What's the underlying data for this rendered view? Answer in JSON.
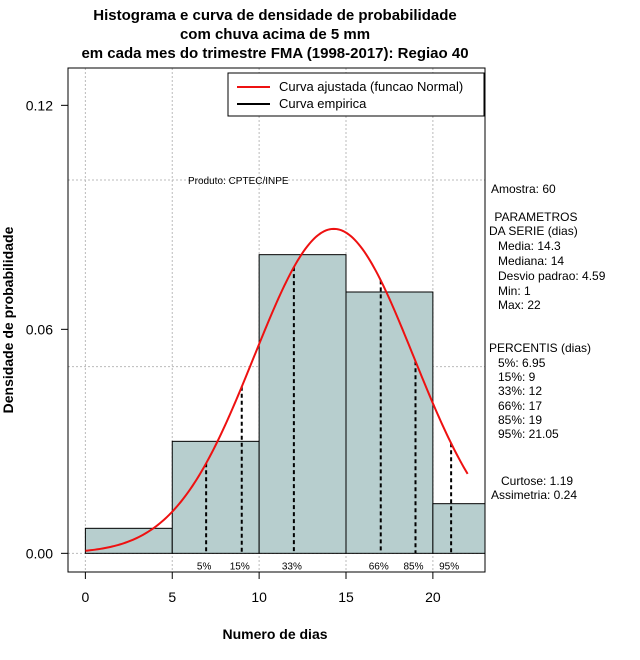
{
  "chart_data": {
    "type": "bar",
    "title_lines": [
      "Histograma e curva de densidade de probabilidade",
      "com chuva acima de 5 mm",
      "em cada mes do trimestre FMA (1998-2017): Regiao 40"
    ],
    "xlabel": "Numero de dias",
    "ylabel": "Densidade de probabilidade",
    "xlim": [
      -1,
      23
    ],
    "ylim": [
      -0.005,
      0.13
    ],
    "x_ticks": [
      0,
      5,
      10,
      15,
      20
    ],
    "y_ticks": [
      {
        "value": 0.0,
        "label": "0.00"
      },
      {
        "value": 0.06,
        "label": "0.06"
      },
      {
        "value": 0.12,
        "label": "0.12"
      }
    ],
    "grid_x": [
      0,
      5,
      10,
      15,
      20
    ],
    "grid_y": [
      0.0,
      0.05,
      0.1
    ],
    "bins": [
      {
        "x0": 0,
        "x1": 5,
        "density": 0.0067
      },
      {
        "x0": 5,
        "x1": 10,
        "density": 0.03
      },
      {
        "x0": 10,
        "x1": 15,
        "density": 0.08
      },
      {
        "x0": 15,
        "x1": 20,
        "density": 0.07
      },
      {
        "x0": 20,
        "x1": 23,
        "density": 0.0133
      }
    ],
    "normal_fit": {
      "mean": 14.3,
      "sd": 4.59,
      "x_from": 0,
      "x_to": 22
    },
    "percentile_lines": [
      {
        "x": 6.95,
        "label": "5%"
      },
      {
        "x": 9,
        "label": "15%"
      },
      {
        "x": 12,
        "label": "33%"
      },
      {
        "x": 17,
        "label": "66%"
      },
      {
        "x": 19,
        "label": "85%"
      },
      {
        "x": 21.05,
        "label": "95%"
      }
    ],
    "legend": {
      "position": "top-right",
      "entries": [
        {
          "label": "Curva ajustada (funcao Normal)",
          "color": "#ee1111"
        },
        {
          "label": "Curva empirica",
          "color": "#000000"
        }
      ]
    },
    "annotation": "Produto: CPTEC/INPE",
    "colors": {
      "bar_fill": "#b7cece",
      "curve": "#ee1111",
      "grid": "#bbbbbb"
    }
  },
  "side_panel": {
    "sample": "Amostra: 60",
    "params_title_1": " PARAMETROS",
    "params_title_2": "DA SERIE (dias)",
    "params": [
      "Media: 14.3",
      "Mediana: 14",
      "Desvio padrao: 4.59",
      "Min: 1",
      "Max: 22"
    ],
    "percentis_title": "PERCENTIS (dias)",
    "percentis": [
      "5%: 6.95",
      "15%: 9",
      "33%: 12",
      "66%: 17",
      "85%: 19",
      "95%: 21.05"
    ],
    "curtose": "Curtose: 1.19",
    "assimetria": "Assimetria: 0.24"
  }
}
